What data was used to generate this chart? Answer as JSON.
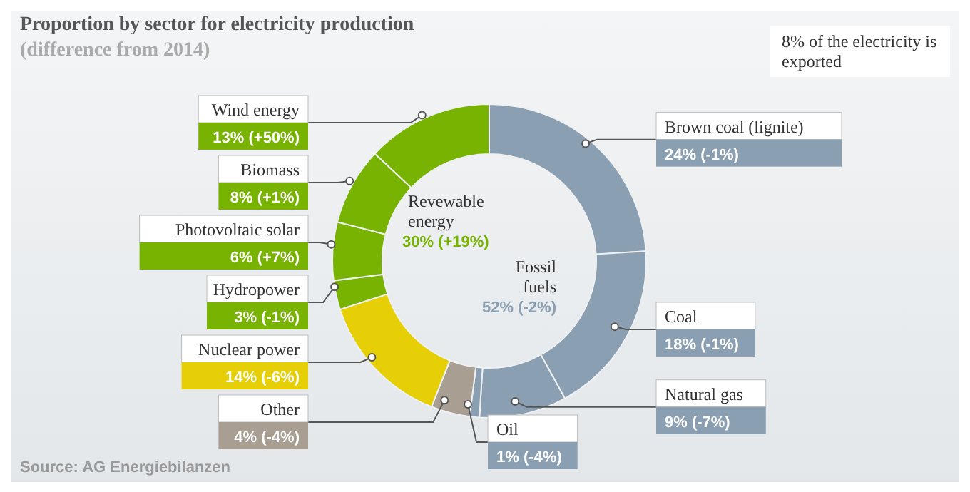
{
  "chart_data": {
    "type": "donut",
    "title": "Proportion by sector for electricity production",
    "subtitle": "(difference from 2014)",
    "categories": [
      "Brown coal (lignite)",
      "Coal",
      "Natural gas",
      "Oil",
      "Other",
      "Nuclear power",
      "Hydropower",
      "Photovoltaic solar",
      "Biomass",
      "Wind energy"
    ],
    "values": [
      24,
      18,
      9,
      1,
      4,
      14,
      3,
      6,
      8,
      13
    ],
    "colors": [
      "#8a9fb1",
      "#8a9fb1",
      "#8a9fb1",
      "#8a9fb1",
      "#a89e92",
      "#e6cf06",
      "#77b300",
      "#77b300",
      "#77b300",
      "#77b300"
    ],
    "value_labels": [
      "24% (-1%)",
      "18% (-1%)",
      "9% (-7%)",
      "1% (-4%)",
      "4% (-4%)",
      "14% (-6%)",
      "3% (-1%)",
      "6% (+7%)",
      "8% (+1%)",
      "13% (+50%)"
    ],
    "annotations": [
      "Revewable energy",
      "30% (+19%)",
      "Fossil fuels",
      "52% (-2%)",
      "8% of the electricity is exported",
      "Source: AG Energiebilanzen"
    ]
  }
}
